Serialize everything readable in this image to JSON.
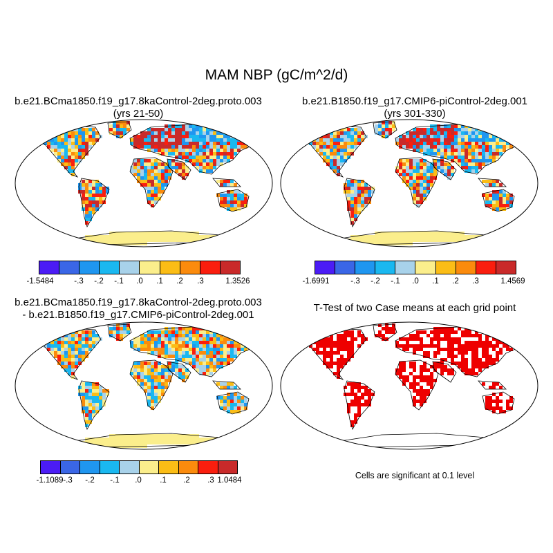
{
  "title": "MAM NBP (gC/m^2/d)",
  "panels": {
    "top_left": {
      "title_line1": "b.e21.BCma1850.f19_g17.8kaControl-2deg.proto.003",
      "title_line2": "(yrs 21-50)"
    },
    "top_right": {
      "title_line1": "b.e21.B1850.f19_g17.CMIP6-piControl-2deg.001",
      "title_line2": "(yrs 301-330)"
    },
    "bottom_left": {
      "title_line1": "b.e21.BCma1850.f19_g17.8kaControl-2deg.proto.003",
      "title_line2": "- b.e21.B1850.f19_g17.CMIP6-piControl-2deg.001"
    },
    "bottom_right": {
      "title_line1": "T-Test of two Case means at each grid point",
      "note": "Cells are significant at 0.1 level"
    }
  },
  "colorbars": {
    "palette": [
      "#4b1cf5",
      "#3a66e6",
      "#1f96f0",
      "#1ab8f0",
      "#a8d2ea",
      "#fbee8c",
      "#fbbd16",
      "#fb8b0d",
      "#fa1e0e",
      "#c92a2a"
    ],
    "top_left": {
      "labels": [
        "-1.5484",
        "-.3",
        "-.2",
        "-.1",
        ".0",
        ".1",
        ".2",
        ".3",
        "1.3526"
      ]
    },
    "top_right": {
      "labels": [
        "-1.6991",
        "-.3",
        "-.2",
        "-.1",
        ".0",
        ".1",
        ".2",
        ".3",
        "1.4569"
      ]
    },
    "bottom_left": {
      "labels": [
        "-1.1089",
        "-.3",
        "-.2",
        "-.1",
        ".0",
        ".1",
        ".2",
        ".3",
        "1.0484"
      ]
    }
  },
  "colors": {
    "significant": "#ee0000",
    "land_neutral": "#fbee8c",
    "ocean": "#ffffff"
  }
}
